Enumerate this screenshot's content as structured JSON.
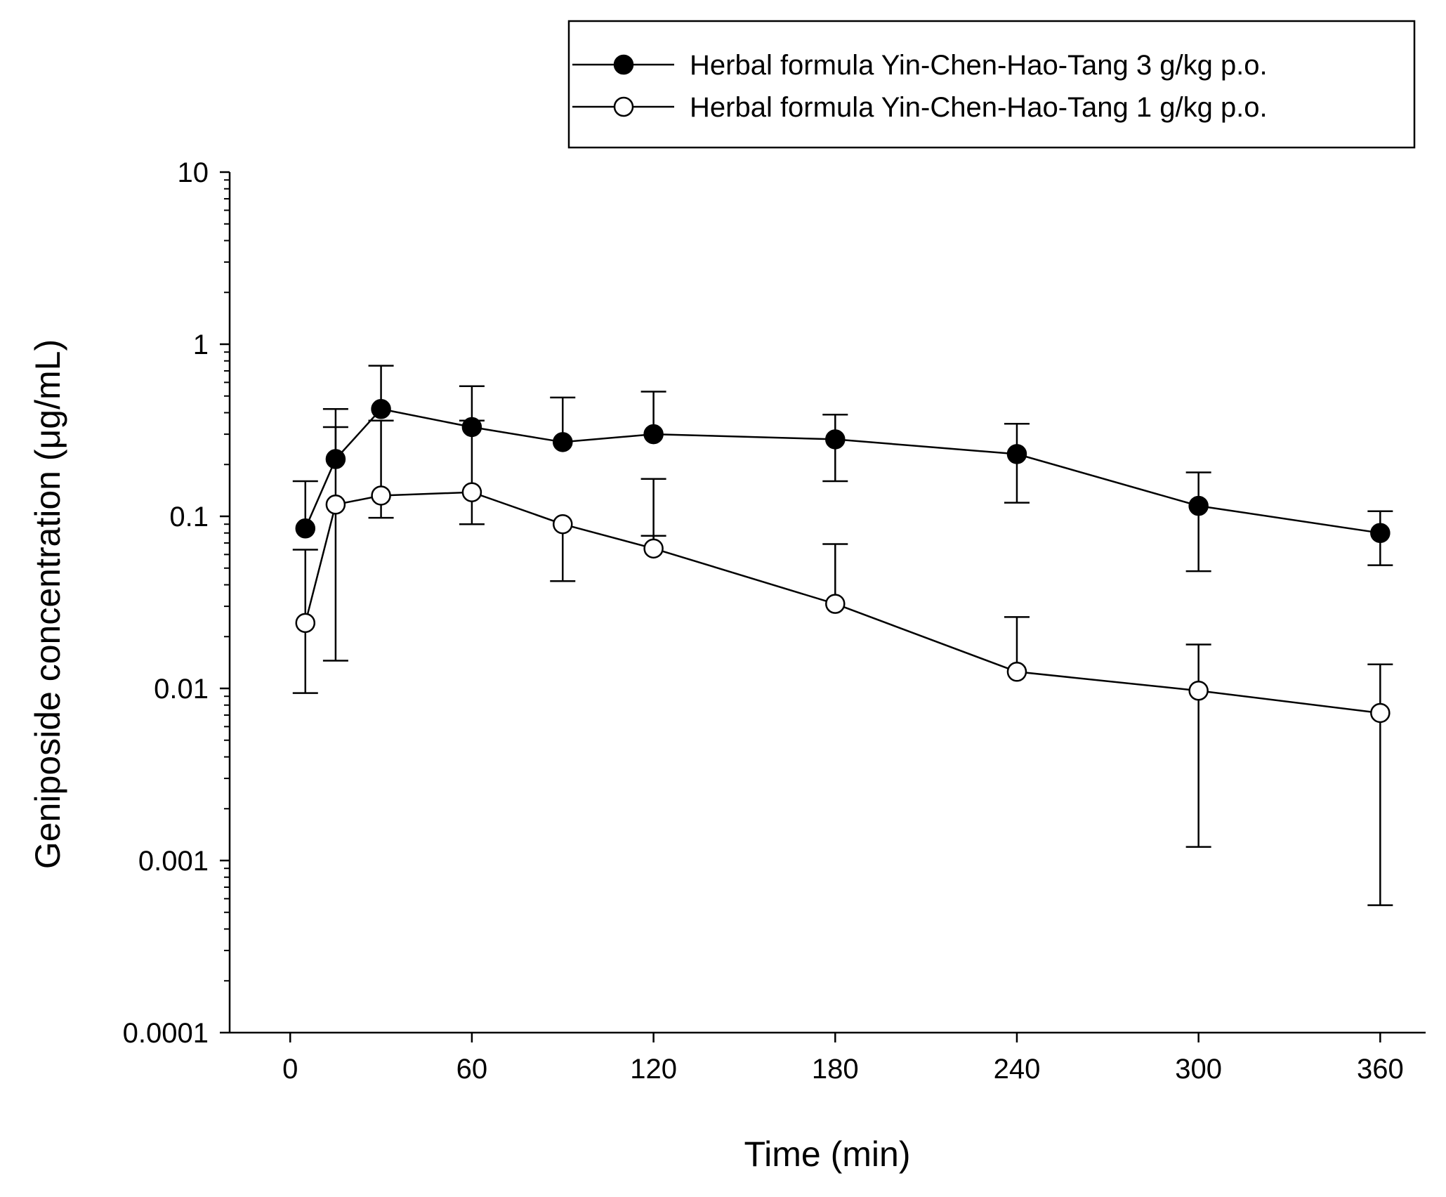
{
  "chart_data": {
    "type": "line",
    "xlabel": "Time (min)",
    "ylabel": "Geniposide concentration (μg/mL)",
    "xlim": [
      -20,
      375
    ],
    "ylim": [
      0.0001,
      10
    ],
    "yscale": "log",
    "x_ticks": [
      0,
      60,
      120,
      180,
      240,
      300,
      360
    ],
    "x_tick_labels": [
      "0",
      "60",
      "120",
      "180",
      "240",
      "300",
      "360"
    ],
    "y_ticks": [
      0.0001,
      0.001,
      0.01,
      0.1,
      1,
      10
    ],
    "y_tick_labels": [
      "0.0001",
      "0.001",
      "0.01",
      "0.1",
      "1",
      "10"
    ],
    "legend_position": "top-right",
    "series": [
      {
        "name": "Herbal formula Yin-Chen-Hao-Tang 3 g/kg p.o.",
        "marker": "filled-circle",
        "x": [
          5,
          15,
          30,
          60,
          90,
          120,
          180,
          240,
          300,
          360
        ],
        "y": [
          0.085,
          0.215,
          0.42,
          0.33,
          0.27,
          0.3,
          0.28,
          0.23,
          0.115,
          0.08
        ],
        "err_upper": [
          0.16,
          0.42,
          0.75,
          0.57,
          0.49,
          0.53,
          0.39,
          0.345,
          0.18,
          0.107
        ],
        "err_lower": [
          null,
          null,
          null,
          null,
          null,
          null,
          0.16,
          0.12,
          0.048,
          0.052
        ]
      },
      {
        "name": "Herbal formula Yin-Chen-Hao-Tang 1 g/kg p.o.",
        "marker": "open-circle",
        "x": [
          5,
          15,
          30,
          60,
          90,
          120,
          180,
          240,
          300,
          360
        ],
        "y": [
          0.024,
          0.117,
          0.132,
          0.138,
          0.09,
          0.065,
          0.031,
          0.0125,
          0.0097,
          0.0072
        ],
        "err_upper": [
          0.064,
          0.33,
          0.36,
          0.36,
          null,
          0.165,
          0.069,
          0.026,
          0.018,
          0.0138
        ],
        "err_lower": [
          0.0094,
          0.0145,
          0.098,
          0.09,
          0.042,
          0.077,
          null,
          null,
          0.0012,
          0.00055
        ]
      }
    ]
  }
}
